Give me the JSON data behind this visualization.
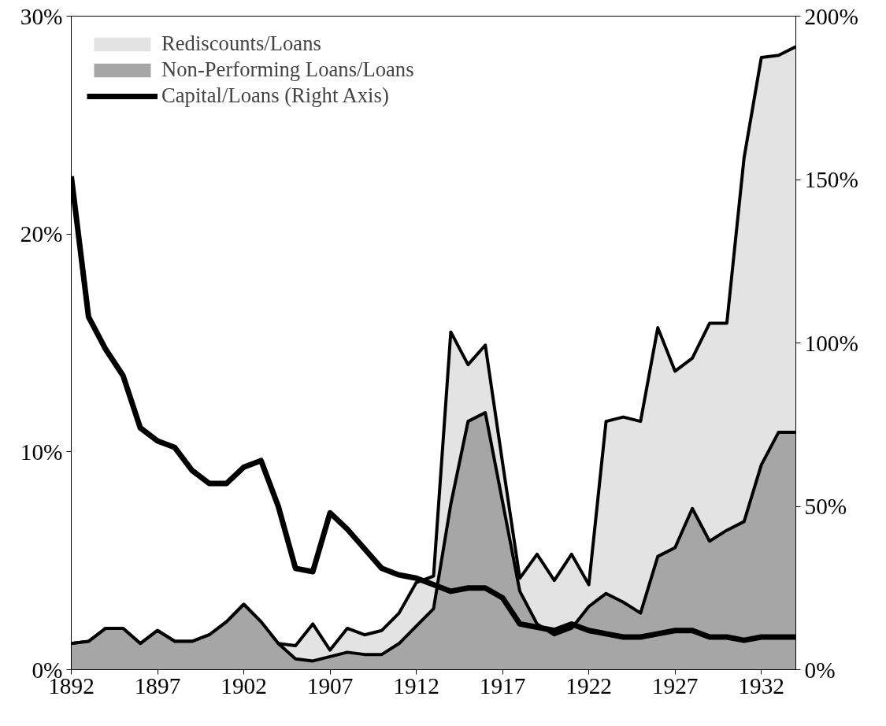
{
  "chart_data": {
    "type": "area",
    "x": [
      1892,
      1893,
      1894,
      1895,
      1896,
      1897,
      1898,
      1899,
      1900,
      1901,
      1902,
      1903,
      1904,
      1905,
      1906,
      1907,
      1908,
      1909,
      1910,
      1911,
      1912,
      1913,
      1914,
      1915,
      1916,
      1917,
      1918,
      1919,
      1920,
      1921,
      1922,
      1923,
      1924,
      1925,
      1926,
      1927,
      1928,
      1929,
      1930,
      1931,
      1932,
      1933,
      1934
    ],
    "series": [
      {
        "name": "Rediscounts/Loans",
        "color": "#e3e3e3",
        "values": [
          1.2,
          1.3,
          1.9,
          1.9,
          1.2,
          1.8,
          1.3,
          1.3,
          1.6,
          2.2,
          3.0,
          2.2,
          1.2,
          1.1,
          2.1,
          0.9,
          1.9,
          1.6,
          1.8,
          2.6,
          4.0,
          4.3,
          15.5,
          14.0,
          14.9,
          9.5,
          4.2,
          5.3,
          4.1,
          5.3,
          3.9,
          11.4,
          11.6,
          11.4,
          15.7,
          13.7,
          14.3,
          15.9,
          15.9,
          23.5,
          28.1,
          28.2,
          28.6
        ]
      },
      {
        "name": "Non-Performing Loans/Loans",
        "color": "#a6a6a6",
        "values": [
          1.2,
          1.3,
          1.9,
          1.9,
          1.2,
          1.8,
          1.3,
          1.3,
          1.6,
          2.2,
          3.0,
          2.2,
          1.2,
          0.5,
          0.4,
          0.6,
          0.8,
          0.7,
          0.7,
          1.2,
          2.0,
          2.8,
          7.6,
          11.4,
          11.8,
          7.7,
          3.6,
          2.1,
          1.6,
          1.9,
          2.9,
          3.5,
          3.1,
          2.6,
          5.2,
          5.6,
          7.4,
          5.9,
          6.4,
          6.8,
          9.4,
          10.9,
          10.9
        ]
      },
      {
        "name": "Capital/Loans (Right Axis)",
        "type": "line",
        "axis": "y2",
        "color": "#000000",
        "values": [
          151,
          108,
          98,
          90,
          74,
          70,
          68,
          61,
          57,
          57,
          62,
          64,
          50,
          31,
          30,
          48,
          43,
          37,
          31,
          29,
          28,
          26,
          24,
          25,
          25,
          22,
          14,
          13,
          12,
          14,
          12,
          11,
          10,
          10,
          11,
          12,
          12,
          10,
          10,
          9,
          10,
          10,
          10
        ]
      }
    ],
    "xlim": [
      1892,
      1934
    ],
    "xticks": [
      1892,
      1897,
      1902,
      1907,
      1912,
      1917,
      1922,
      1927,
      1932
    ],
    "ylim": [
      0,
      30
    ],
    "yticks": [
      {
        "value": 0,
        "label": "0%"
      },
      {
        "value": 10,
        "label": "10%"
      },
      {
        "value": 20,
        "label": "20%"
      },
      {
        "value": 30,
        "label": "30%"
      }
    ],
    "y2lim": [
      0,
      200
    ],
    "y2ticks": [
      {
        "value": 0,
        "label": "0%"
      },
      {
        "value": 50,
        "label": "50%"
      },
      {
        "value": 100,
        "label": "100%"
      },
      {
        "value": 150,
        "label": "150%"
      },
      {
        "value": 200,
        "label": "200%"
      }
    ],
    "grid": false,
    "legend": "top left"
  }
}
